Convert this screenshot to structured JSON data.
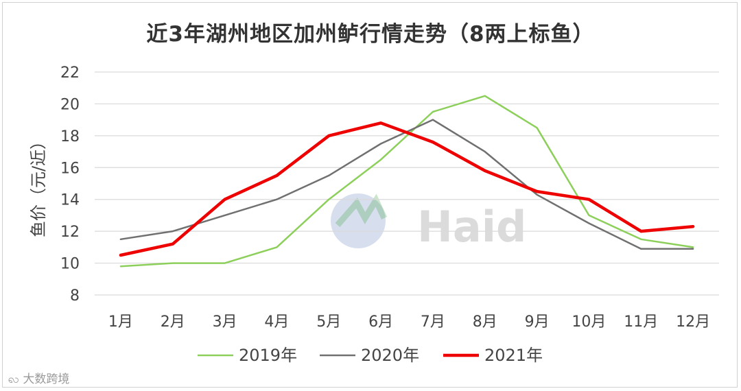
{
  "title": "近3年湖州地区加州鲈行情走势（8两上标鱼）",
  "source_watermark": "大数跨境",
  "logo_watermark_text": "Haid",
  "chart_data": {
    "type": "line",
    "title": "近3年湖州地区加州鲈行情走势（8两上标鱼）",
    "xlabel": "",
    "ylabel": "鱼价（元/近）",
    "categories": [
      "1月",
      "2月",
      "3月",
      "4月",
      "5月",
      "6月",
      "7月",
      "8月",
      "9月",
      "10月",
      "11月",
      "12月"
    ],
    "ylim": [
      8,
      22
    ],
    "yticks": [
      8,
      10,
      12,
      14,
      16,
      18,
      20,
      22
    ],
    "grid": true,
    "legend_position": "bottom",
    "series": [
      {
        "name": "2019年",
        "color": "#8ccf5a",
        "width": 2.5,
        "values": [
          9.8,
          10.0,
          10.0,
          11.0,
          14.0,
          16.5,
          19.5,
          20.5,
          18.5,
          13.0,
          11.5,
          11.0
        ]
      },
      {
        "name": "2020年",
        "color": "#707070",
        "width": 2.5,
        "values": [
          11.5,
          12.0,
          13.0,
          14.0,
          15.5,
          17.5,
          19.0,
          17.0,
          14.3,
          12.5,
          10.9,
          10.9
        ]
      },
      {
        "name": "2021年",
        "color": "#ee0000",
        "width": 4.5,
        "values": [
          10.5,
          11.2,
          14.0,
          15.5,
          18.0,
          18.8,
          17.6,
          15.8,
          14.5,
          14.0,
          12.0,
          12.3
        ]
      }
    ]
  }
}
